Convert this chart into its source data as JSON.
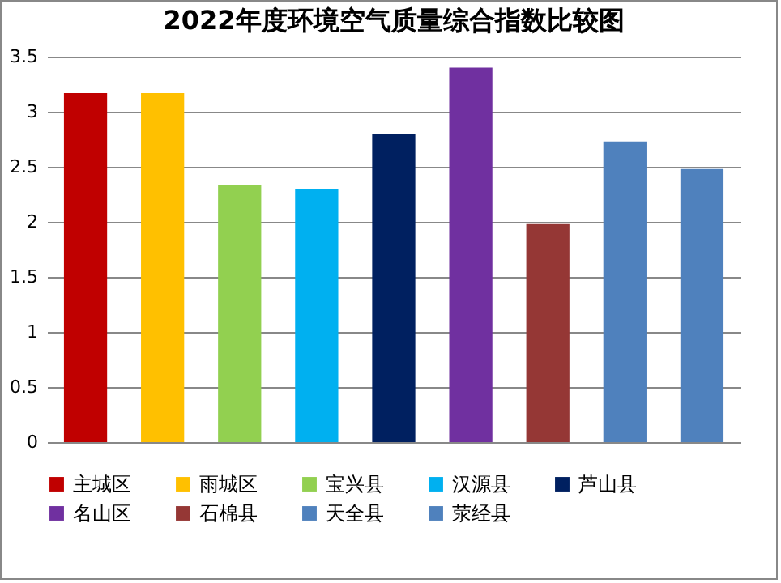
{
  "chart_data": {
    "type": "bar",
    "title": "2022年度环境空气质量综合指数比较图",
    "categories": [
      null,
      null,
      null,
      null,
      null,
      null,
      null,
      null,
      null
    ],
    "series": [
      {
        "name": "主城区",
        "color": "#c00000",
        "values": [
          3.17,
          null,
          null,
          null,
          null,
          null,
          null,
          null,
          null
        ]
      },
      {
        "name": "雨城区",
        "color": "#ffc000",
        "values": [
          null,
          3.17,
          null,
          null,
          null,
          null,
          null,
          null,
          null
        ]
      },
      {
        "name": "宝兴县",
        "color": "#92d050",
        "values": [
          null,
          null,
          2.33,
          null,
          null,
          null,
          null,
          null,
          null
        ]
      },
      {
        "name": "汉源县",
        "color": "#00b0f0",
        "values": [
          null,
          null,
          null,
          2.3,
          null,
          null,
          null,
          null,
          null
        ]
      },
      {
        "name": "芦山县",
        "color": "#002060",
        "values": [
          null,
          null,
          null,
          null,
          2.8,
          null,
          null,
          null,
          null
        ]
      },
      {
        "name": "名山区",
        "color": "#7030a0",
        "values": [
          null,
          null,
          null,
          null,
          null,
          3.4,
          null,
          null,
          null
        ]
      },
      {
        "name": "石棉县",
        "color": "#953735",
        "values": [
          null,
          null,
          null,
          null,
          null,
          null,
          1.98,
          null,
          null
        ]
      },
      {
        "name": "天全县",
        "color": "#4f81bd",
        "values": [
          null,
          null,
          null,
          null,
          null,
          null,
          null,
          2.73,
          null
        ]
      },
      {
        "name": "荥经县",
        "color": "#4f81bd",
        "values": [
          null,
          null,
          null,
          null,
          null,
          null,
          null,
          null,
          2.48
        ]
      }
    ],
    "ylim": [
      0,
      3.5
    ],
    "yticks": [
      0,
      0.5,
      1,
      1.5,
      2,
      2.5,
      3,
      3.5
    ],
    "grid": "y",
    "legend": "bottom"
  }
}
